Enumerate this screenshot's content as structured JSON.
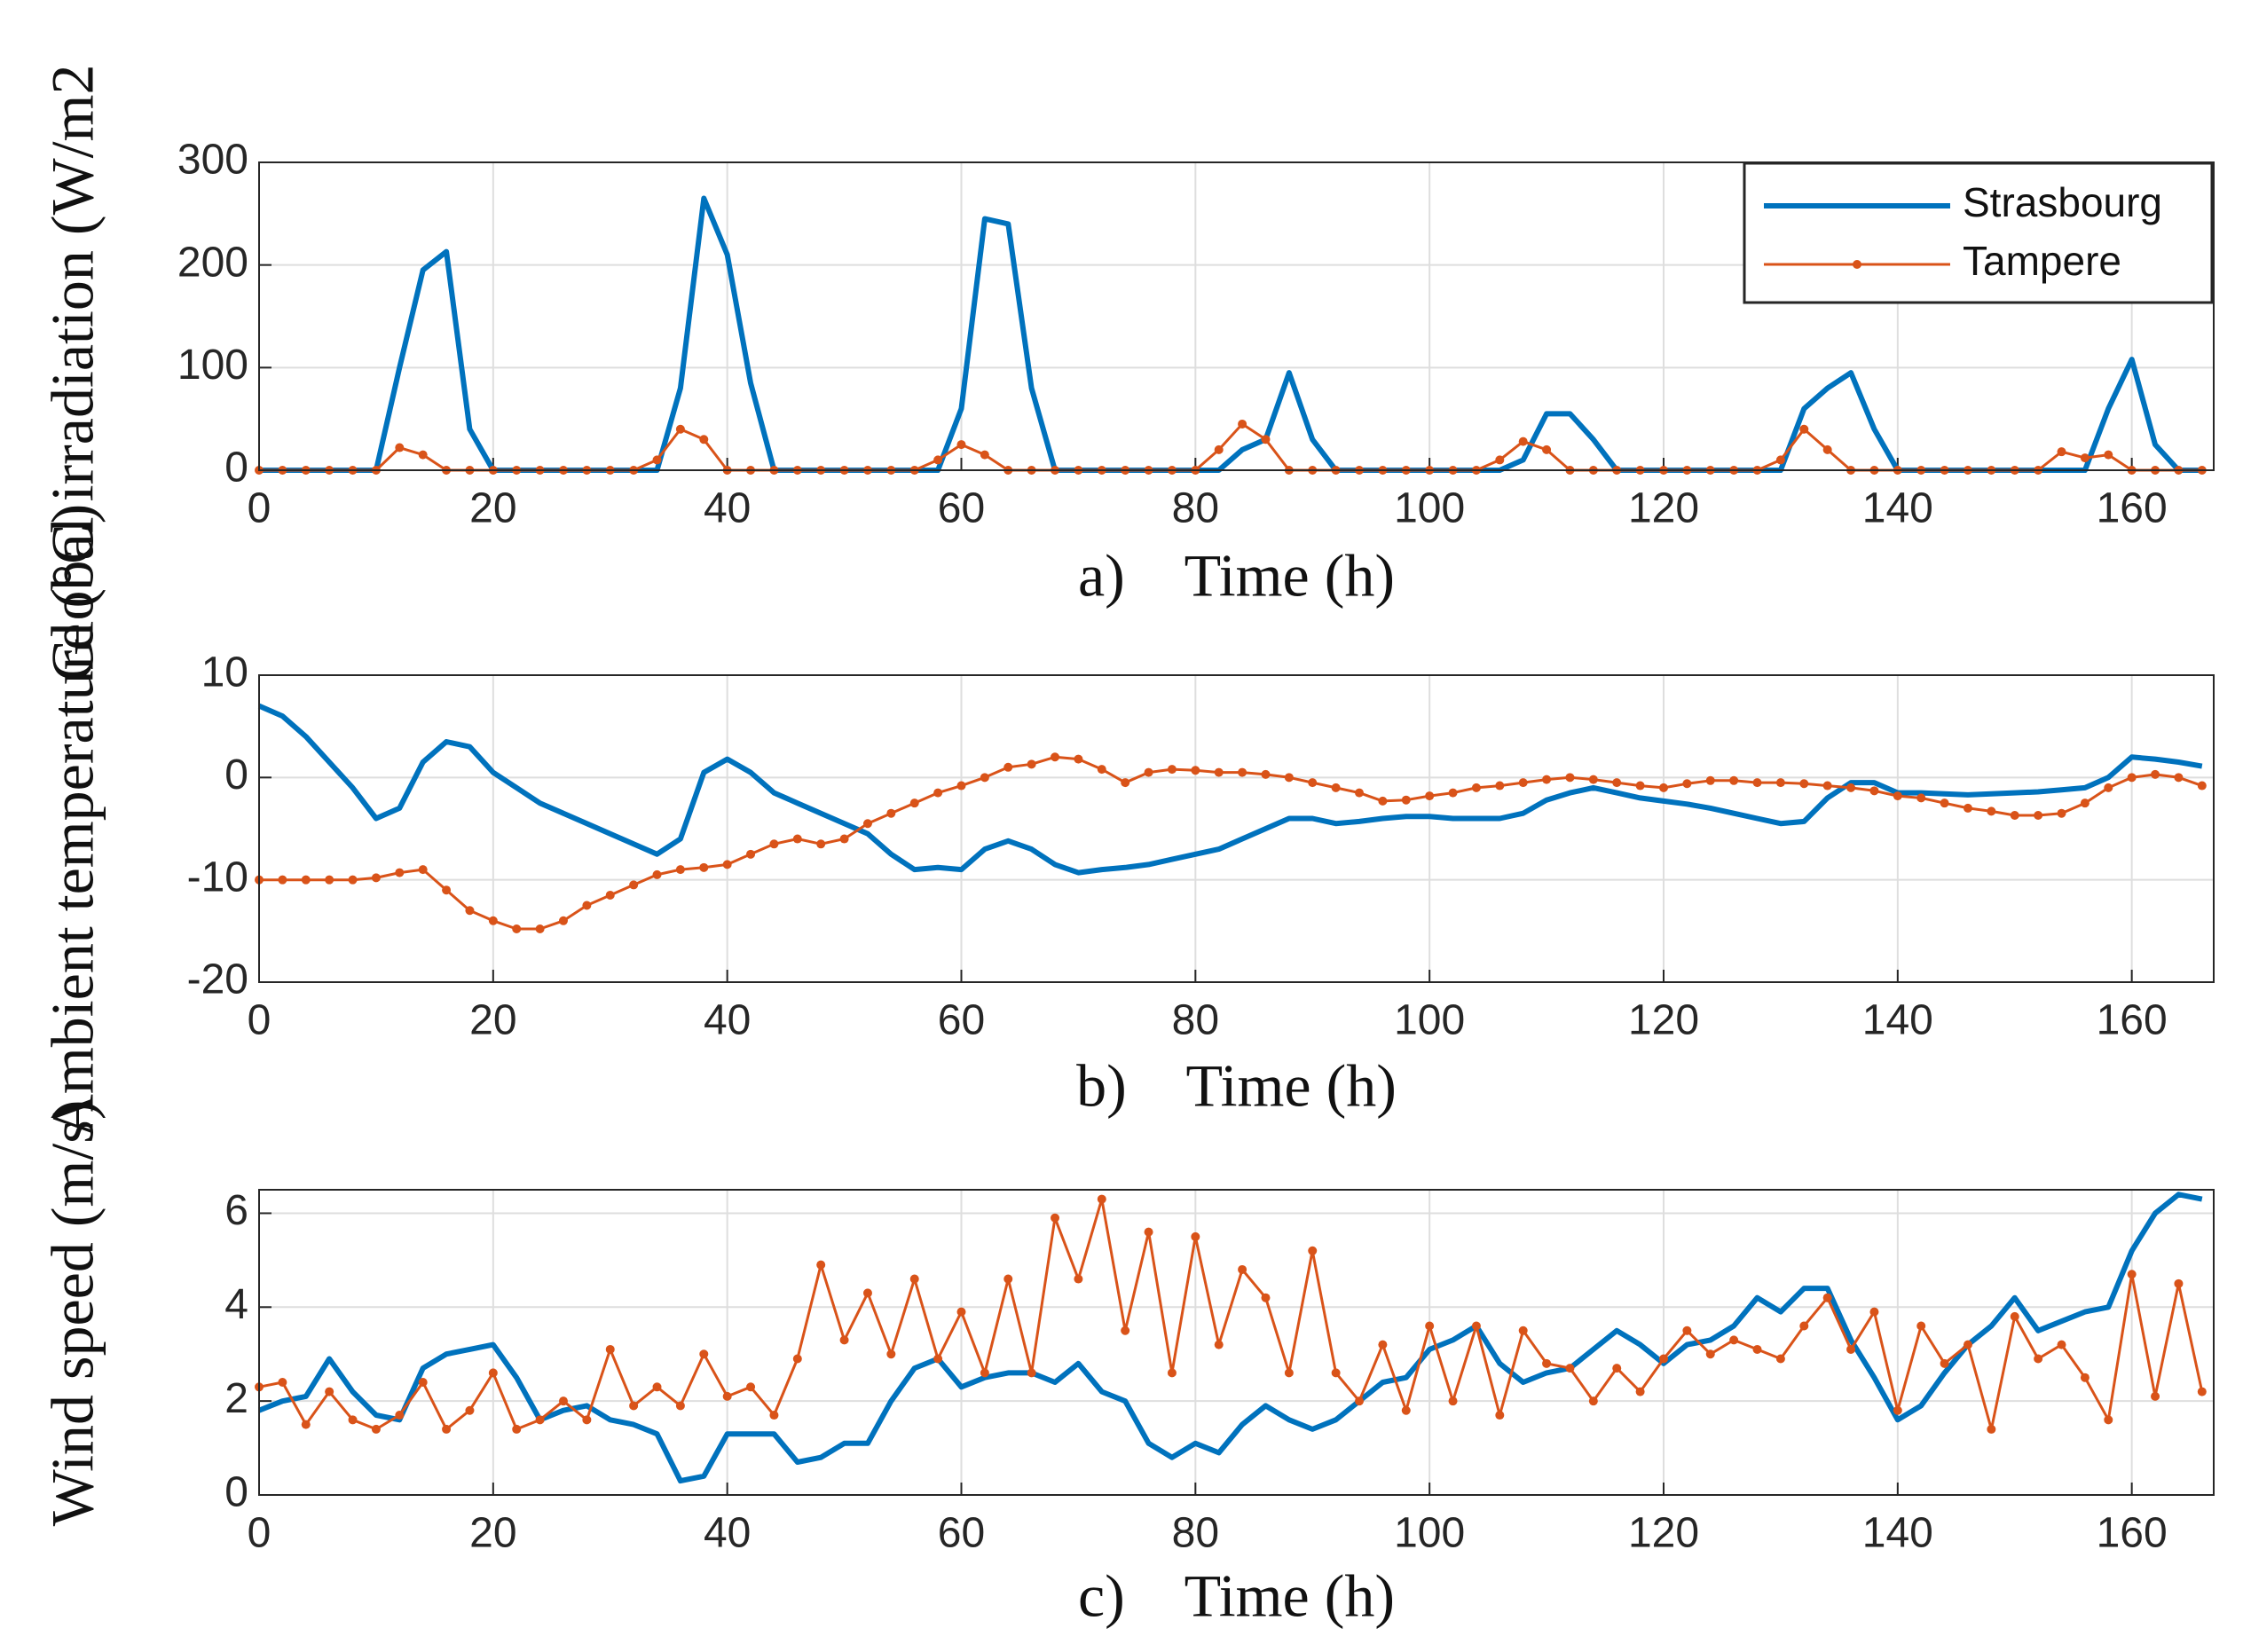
{
  "chart_data": [
    {
      "type": "line",
      "xlabel": "a)    Time (h)",
      "ylabel": "Global irradiation (W/m2",
      "x": [
        0,
        2,
        4,
        6,
        8,
        10,
        12,
        14,
        16,
        18,
        20,
        22,
        24,
        26,
        28,
        30,
        32,
        34,
        36,
        38,
        40,
        42,
        44,
        46,
        48,
        50,
        52,
        54,
        56,
        58,
        60,
        62,
        64,
        66,
        68,
        70,
        72,
        74,
        76,
        78,
        80,
        82,
        84,
        86,
        88,
        90,
        92,
        94,
        96,
        98,
        100,
        102,
        104,
        106,
        108,
        110,
        112,
        114,
        116,
        118,
        120,
        122,
        124,
        126,
        128,
        130,
        132,
        134,
        136,
        138,
        140,
        142,
        144,
        146,
        148,
        150,
        152,
        154,
        156,
        158,
        160,
        162,
        164,
        166
      ],
      "xlim": [
        0,
        167
      ],
      "xticks": [
        0,
        20,
        40,
        60,
        80,
        100,
        120,
        140,
        160
      ],
      "ylim": [
        0,
        300
      ],
      "yticks": [
        0,
        100,
        200,
        300
      ],
      "grid": true,
      "legend": "upper right",
      "series": [
        {
          "name": "Strasbourg",
          "color": "#0072bd",
          "values": [
            0,
            0,
            0,
            0,
            0,
            0,
            100,
            195,
            213,
            40,
            0,
            0,
            0,
            0,
            0,
            0,
            0,
            0,
            80,
            265,
            210,
            85,
            0,
            0,
            0,
            0,
            0,
            0,
            0,
            0,
            60,
            245,
            240,
            80,
            0,
            0,
            0,
            0,
            0,
            0,
            0,
            0,
            20,
            30,
            95,
            30,
            0,
            0,
            0,
            0,
            0,
            0,
            0,
            0,
            10,
            55,
            55,
            30,
            0,
            0,
            0,
            0,
            0,
            0,
            0,
            0,
            60,
            80,
            95,
            40,
            0,
            0,
            0,
            0,
            0,
            0,
            0,
            0,
            0,
            60,
            108,
            25,
            0,
            0
          ]
        },
        {
          "name": "Tampere",
          "color": "#d95319",
          "marker": "o",
          "values": [
            0,
            0,
            0,
            0,
            0,
            0,
            22,
            15,
            0,
            0,
            0,
            0,
            0,
            0,
            0,
            0,
            0,
            10,
            40,
            30,
            0,
            0,
            0,
            0,
            0,
            0,
            0,
            0,
            0,
            10,
            25,
            15,
            0,
            0,
            0,
            0,
            0,
            0,
            0,
            0,
            0,
            20,
            45,
            30,
            0,
            0,
            0,
            0,
            0,
            0,
            0,
            0,
            0,
            10,
            28,
            20,
            0,
            0,
            0,
            0,
            0,
            0,
            0,
            0,
            0,
            10,
            40,
            20,
            0,
            0,
            0,
            0,
            0,
            0,
            0,
            0,
            0,
            18,
            12,
            15,
            0,
            0,
            0,
            0
          ]
        }
      ]
    },
    {
      "type": "line",
      "xlabel": "b)    Time (h)",
      "ylabel": "Ambient temperature (°C)",
      "x": [
        0,
        2,
        4,
        6,
        8,
        10,
        12,
        14,
        16,
        18,
        20,
        22,
        24,
        26,
        28,
        30,
        32,
        34,
        36,
        38,
        40,
        42,
        44,
        46,
        48,
        50,
        52,
        54,
        56,
        58,
        60,
        62,
        64,
        66,
        68,
        70,
        72,
        74,
        76,
        78,
        80,
        82,
        84,
        86,
        88,
        90,
        92,
        94,
        96,
        98,
        100,
        102,
        104,
        106,
        108,
        110,
        112,
        114,
        116,
        118,
        120,
        122,
        124,
        126,
        128,
        130,
        132,
        134,
        136,
        138,
        140,
        142,
        144,
        146,
        148,
        150,
        152,
        154,
        156,
        158,
        160,
        162,
        164,
        166
      ],
      "xlim": [
        0,
        167
      ],
      "xticks": [
        0,
        20,
        40,
        60,
        80,
        100,
        120,
        140,
        160
      ],
      "ylim": [
        -20,
        10
      ],
      "yticks": [
        -20,
        -10,
        0,
        10
      ],
      "grid": true,
      "series": [
        {
          "color": "#0072bd",
          "values": [
            7,
            6,
            4,
            1.5,
            -1,
            -4,
            -3,
            1.5,
            3.5,
            3,
            0.5,
            -1,
            -2.5,
            -3.5,
            -4.5,
            -5.5,
            -6.5,
            -7.5,
            -6,
            0.5,
            1.8,
            0.5,
            -1.5,
            -2.5,
            -3.5,
            -4.5,
            -5.5,
            -7.5,
            -9,
            -8.8,
            -9,
            -7,
            -6.2,
            -7,
            -8.5,
            -9.3,
            -9,
            -8.8,
            -8.5,
            -8,
            -7.5,
            -7,
            -6,
            -5,
            -4,
            -4,
            -4.5,
            -4.3,
            -4,
            -3.8,
            -3.8,
            -4,
            -4,
            -4,
            -3.5,
            -2.2,
            -1.5,
            -1,
            -1.5,
            -2,
            -2.3,
            -2.6,
            -3,
            -3.5,
            -4,
            -4.5,
            -4.3,
            -2,
            -0.5,
            -0.5,
            -1.5,
            -1.5,
            -1.6,
            -1.7,
            -1.6,
            -1.5,
            -1.4,
            -1.2,
            -1,
            0,
            2,
            1.8,
            1.5,
            1.1
          ]
        },
        {
          "color": "#d95319",
          "marker": "o",
          "values": [
            -10,
            -10,
            -10,
            -10,
            -10,
            -9.8,
            -9.3,
            -9,
            -11,
            -13,
            -14,
            -14.8,
            -14.8,
            -14,
            -12.5,
            -11.5,
            -10.5,
            -9.5,
            -9,
            -8.8,
            -8.5,
            -7.5,
            -6.5,
            -6,
            -6.5,
            -6,
            -4.5,
            -3.5,
            -2.5,
            -1.5,
            -0.8,
            0,
            1,
            1.3,
            2,
            1.8,
            0.8,
            -0.5,
            0.5,
            0.8,
            0.7,
            0.5,
            0.5,
            0.3,
            0,
            -0.5,
            -1,
            -1.5,
            -2.3,
            -2.2,
            -1.8,
            -1.5,
            -1,
            -0.8,
            -0.5,
            -0.2,
            0,
            -0.2,
            -0.5,
            -0.8,
            -1,
            -0.6,
            -0.3,
            -0.3,
            -0.5,
            -0.5,
            -0.6,
            -0.8,
            -1,
            -1.3,
            -1.8,
            -2,
            -2.5,
            -3,
            -3.3,
            -3.7,
            -3.7,
            -3.5,
            -2.5,
            -1,
            0,
            0.3,
            0,
            -0.8
          ]
        }
      ]
    },
    {
      "type": "line",
      "xlabel": "c)    Time (h)",
      "ylabel": "Wind speed (m/s)",
      "x": [
        0,
        2,
        4,
        6,
        8,
        10,
        12,
        14,
        16,
        18,
        20,
        22,
        24,
        26,
        28,
        30,
        32,
        34,
        36,
        38,
        40,
        42,
        44,
        46,
        48,
        50,
        52,
        54,
        56,
        58,
        60,
        62,
        64,
        66,
        68,
        70,
        72,
        74,
        76,
        78,
        80,
        82,
        84,
        86,
        88,
        90,
        92,
        94,
        96,
        98,
        100,
        102,
        104,
        106,
        108,
        110,
        112,
        114,
        116,
        118,
        120,
        122,
        124,
        126,
        128,
        130,
        132,
        134,
        136,
        138,
        140,
        142,
        144,
        146,
        148,
        150,
        152,
        154,
        156,
        158,
        160,
        162,
        164,
        166
      ],
      "xlim": [
        0,
        167
      ],
      "xticks": [
        0,
        20,
        40,
        60,
        80,
        100,
        120,
        140,
        160
      ],
      "ylim": [
        0,
        6.5
      ],
      "yticks": [
        0,
        2,
        4,
        6
      ],
      "grid": true,
      "series": [
        {
          "color": "#0072bd",
          "values": [
            1.8,
            2,
            2.1,
            2.9,
            2.2,
            1.7,
            1.6,
            2.7,
            3,
            3.1,
            3.2,
            2.5,
            1.6,
            1.8,
            1.9,
            1.6,
            1.5,
            1.3,
            0.3,
            0.4,
            1.3,
            1.3,
            1.3,
            0.7,
            0.8,
            1.1,
            1.1,
            2,
            2.7,
            2.9,
            2.3,
            2.5,
            2.6,
            2.6,
            2.4,
            2.8,
            2.2,
            2,
            1.1,
            0.8,
            1.1,
            0.9,
            1.5,
            1.9,
            1.6,
            1.4,
            1.6,
            2,
            2.4,
            2.5,
            3.1,
            3.3,
            3.6,
            2.8,
            2.4,
            2.6,
            2.7,
            3.1,
            3.5,
            3.2,
            2.8,
            3.2,
            3.3,
            3.6,
            4.2,
            3.9,
            4.4,
            4.4,
            3.3,
            2.5,
            1.6,
            1.9,
            2.6,
            3.2,
            3.6,
            4.2,
            3.5,
            3.7,
            3.9,
            4,
            5.2,
            6,
            6.4,
            6.3
          ]
        },
        {
          "color": "#d95319",
          "marker": "o",
          "values": [
            2.3,
            2.4,
            1.5,
            2.2,
            1.6,
            1.4,
            1.7,
            2.4,
            1.4,
            1.8,
            2.6,
            1.4,
            1.6,
            2,
            1.6,
            3.1,
            1.9,
            2.3,
            1.9,
            3,
            2.1,
            2.3,
            1.7,
            2.9,
            4.9,
            3.3,
            4.3,
            3,
            4.6,
            2.9,
            3.9,
            2.6,
            4.6,
            2.6,
            5.9,
            4.6,
            6.3,
            3.5,
            5.6,
            2.6,
            5.5,
            3.2,
            4.8,
            4.2,
            2.6,
            5.2,
            2.6,
            2,
            3.2,
            1.8,
            3.6,
            2,
            3.6,
            1.7,
            3.5,
            2.8,
            2.7,
            2,
            2.7,
            2.2,
            2.9,
            3.5,
            3,
            3.3,
            3.1,
            2.9,
            3.6,
            4.2,
            3.1,
            3.9,
            1.8,
            3.6,
            2.8,
            3.2,
            1.4,
            3.8,
            2.9,
            3.2,
            2.5,
            1.6,
            4.7,
            2.1,
            4.5,
            2.2
          ]
        }
      ]
    }
  ]
}
